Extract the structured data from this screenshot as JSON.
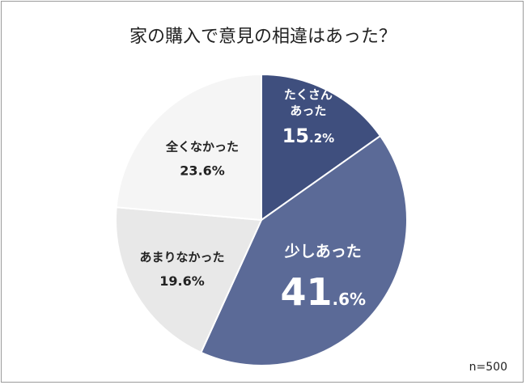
{
  "chart_data": {
    "type": "pie",
    "title": "家の購入で意見の相違はあった？",
    "note": "n=500",
    "slices": [
      {
        "label_lines": [
          "たくさん",
          "あった"
        ],
        "value": 15.2,
        "value_int": "15",
        "value_dec": ".2%",
        "color": "#3f4f7e",
        "text_color": "#ffffff"
      },
      {
        "label_lines": [
          "少しあった"
        ],
        "value": 41.6,
        "value_int": "41",
        "value_dec": ".6%",
        "color": "#5b6a97",
        "text_color": "#ffffff"
      },
      {
        "label_lines": [
          "あまりなかった"
        ],
        "value": 19.6,
        "value_text": "19.6%",
        "color": "#e8e8e8",
        "text_color": "#222222"
      },
      {
        "label_lines": [
          "全くなかった"
        ],
        "value": 23.6,
        "value_text": "23.6%",
        "color": "#f5f5f5",
        "text_color": "#222222"
      }
    ]
  }
}
